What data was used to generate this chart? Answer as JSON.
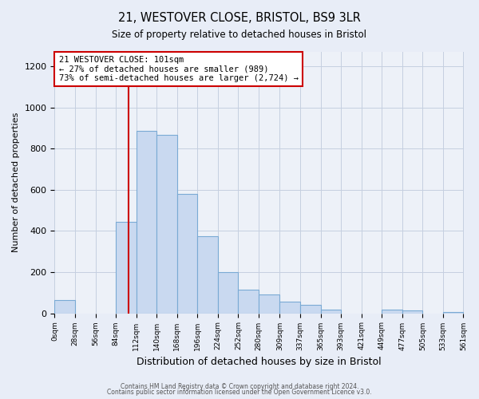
{
  "title": "21, WESTOVER CLOSE, BRISTOL, BS9 3LR",
  "subtitle": "Size of property relative to detached houses in Bristol",
  "xlabel": "Distribution of detached houses by size in Bristol",
  "ylabel": "Number of detached properties",
  "footer_line1": "Contains HM Land Registry data © Crown copyright and database right 2024.",
  "footer_line2": "Contains public sector information licensed under the Open Government Licence v3.0.",
  "bar_edges": [
    0,
    28,
    56,
    84,
    112,
    140,
    168,
    196,
    224,
    252,
    280,
    309,
    337,
    365,
    393,
    421,
    449,
    477,
    505,
    533,
    561
  ],
  "bar_heights": [
    65,
    0,
    0,
    445,
    885,
    865,
    580,
    375,
    200,
    115,
    90,
    55,
    42,
    18,
    0,
    0,
    18,
    12,
    0,
    5
  ],
  "bar_color": "#c9d9f0",
  "bar_edge_color": "#7aaad4",
  "red_line_x": 101,
  "red_line_color": "#cc0000",
  "annotation_text": "21 WESTOVER CLOSE: 101sqm\n← 27% of detached houses are smaller (989)\n73% of semi-detached houses are larger (2,724) →",
  "annotation_box_color": "#ffffff",
  "annotation_box_edge_color": "#cc0000",
  "ylim": [
    0,
    1270
  ],
  "yticks": [
    0,
    200,
    400,
    600,
    800,
    1000,
    1200
  ],
  "background_color": "#e8edf7",
  "plot_background_color": "#edf1f8"
}
